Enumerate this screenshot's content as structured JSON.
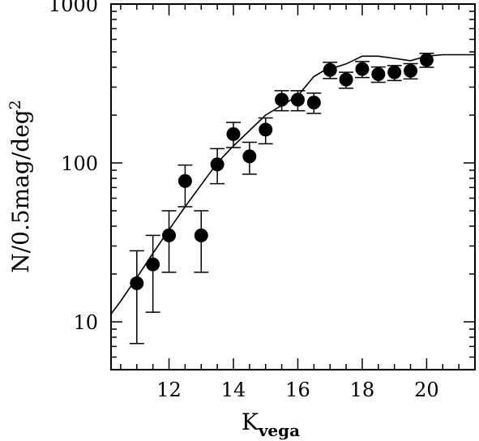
{
  "chart_data": {
    "type": "scatter",
    "title": "",
    "xlabel": "K",
    "xlabel_subscript": "vega",
    "ylabel": "N/0.5mag/deg",
    "ylabel_superscript": "2",
    "xlim": [
      10.2,
      21.5
    ],
    "ylim": [
      5,
      1000
    ],
    "yscale": "log",
    "grid": false,
    "x_ticks": [
      12,
      14,
      16,
      18,
      20
    ],
    "x_tick_labels": [
      "12",
      "14",
      "16",
      "18",
      "20"
    ],
    "y_ticks": [
      10,
      100,
      1000
    ],
    "y_tick_labels": [
      "10",
      "100",
      "1000"
    ],
    "series": [
      {
        "kind": "points_with_errorbars",
        "x": [
          11.0,
          11.5,
          12.0,
          12.5,
          13.0,
          13.5,
          14.0,
          14.5,
          15.0,
          15.5,
          16.0,
          16.5,
          17.0,
          17.5,
          18.0,
          18.5,
          19.0,
          19.5,
          20.0
        ],
        "y": [
          17.5,
          23,
          35,
          77,
          35,
          98,
          152,
          110,
          162,
          250,
          250,
          240,
          385,
          335,
          390,
          362,
          372,
          380,
          445
        ],
        "y_low": [
          7.3,
          11.5,
          20.5,
          53,
          20.5,
          74,
          125,
          85,
          132,
          213,
          213,
          205,
          340,
          295,
          345,
          322,
          330,
          338,
          400
        ],
        "y_high": [
          28,
          35,
          50,
          97,
          50,
          123,
          180,
          135,
          192,
          285,
          285,
          275,
          430,
          372,
          435,
          402,
          410,
          422,
          490
        ]
      },
      {
        "kind": "model_curve",
        "x": [
          10.2,
          10.5,
          11.0,
          11.5,
          12.0,
          12.5,
          13.0,
          13.5,
          14.0,
          14.5,
          15.0,
          15.5,
          16.0,
          16.5,
          16.8,
          17.0,
          17.5,
          18.0,
          18.5,
          19.0,
          19.5,
          20.0,
          20.5,
          21.0,
          21.5
        ],
        "y": [
          11.2,
          13.5,
          19,
          27,
          38,
          53,
          73,
          100,
          128,
          160,
          200,
          230,
          265,
          350,
          380,
          390,
          420,
          470,
          470,
          455,
          440,
          470,
          480,
          480,
          480
        ]
      }
    ]
  }
}
